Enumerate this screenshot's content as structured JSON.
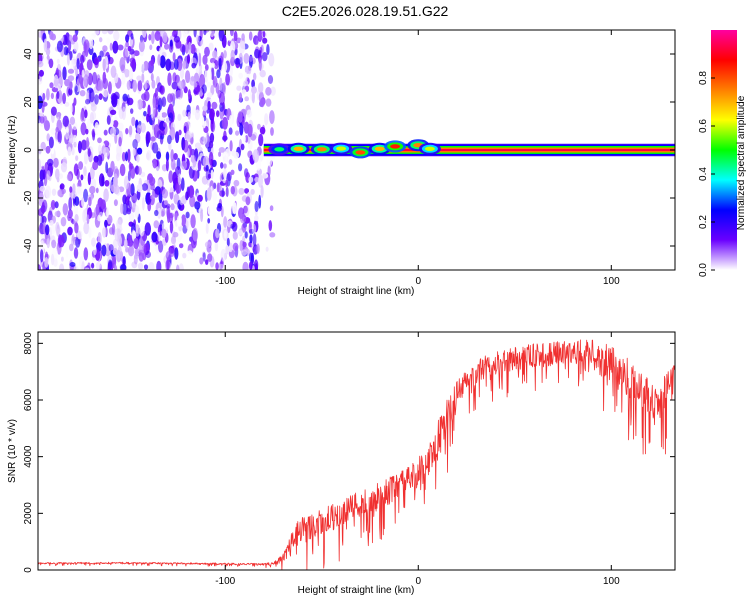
{
  "chart_data": [
    {
      "type": "heatmap",
      "title": "C2E5.2026.028.19.51.G22",
      "xlabel": "Height of straight line (km)",
      "ylabel": "Frequency (Hz)",
      "xlim": [
        -197,
        133
      ],
      "ylim": [
        -50,
        50
      ],
      "x_ticks": [
        -100,
        0,
        100
      ],
      "x_tick_labels": [
        "-100",
        "0",
        "100"
      ],
      "y_ticks": [
        -40,
        -20,
        0,
        20,
        40
      ],
      "y_tick_labels": [
        "-40",
        "-20",
        "0",
        "20",
        "40"
      ],
      "noise_region": {
        "x_from": -197,
        "x_to": -75,
        "freq_from": -50,
        "freq_to": 50
      },
      "signal_band": {
        "x_from": -80,
        "x_to": 133,
        "freq_center": 0,
        "half_width_hz": 1.5
      },
      "signal_blobs": [
        {
          "x": -72,
          "freq": 0.3,
          "amp": 0.45
        },
        {
          "x": -62,
          "freq": 0.5,
          "amp": 0.7
        },
        {
          "x": -50,
          "freq": 0.3,
          "amp": 0.75
        },
        {
          "x": -40,
          "freq": 0.6,
          "amp": 0.6
        },
        {
          "x": -30,
          "freq": -1.0,
          "amp": 0.8
        },
        {
          "x": -20,
          "freq": 0.5,
          "amp": 0.7
        },
        {
          "x": -12,
          "freq": 1.5,
          "amp": 0.85
        },
        {
          "x": 0,
          "freq": 2.0,
          "amp": 0.75
        },
        {
          "x": 6,
          "freq": 0.5,
          "amp": 0.6
        }
      ],
      "colorbar": {
        "label": "Normalized spectral amplitude",
        "range": [
          0,
          1
        ],
        "ticks": [
          0.0,
          0.2,
          0.4,
          0.6,
          0.8
        ],
        "tick_labels": [
          "0.0",
          "0.2",
          "0.4",
          "0.6",
          "0.8"
        ],
        "stops": [
          "#ffffff",
          "#6a00ff",
          "#0000ff",
          "#00ffff",
          "#00ff00",
          "#ffff00",
          "#ff7f00",
          "#ff0000",
          "#ff00a0"
        ]
      }
    },
    {
      "type": "line",
      "xlabel": "Height of straight line (km)",
      "ylabel": "SNR (10 * v/v)",
      "xlim": [
        -197,
        133
      ],
      "ylim": [
        0,
        8400
      ],
      "x_ticks": [
        -100,
        0,
        100
      ],
      "x_tick_labels": [
        "-100",
        "0",
        "100"
      ],
      "y_ticks": [
        0,
        2000,
        4000,
        6000,
        8000
      ],
      "y_tick_labels": [
        "0",
        "2000",
        "4000",
        "6000",
        "8000"
      ],
      "color": "#f03030",
      "series": [
        {
          "name": "SNR",
          "x": [
            -197,
            -180,
            -160,
            -140,
            -120,
            -100,
            -90,
            -80,
            -75,
            -70,
            -65,
            -62,
            -58,
            -55,
            -50,
            -45,
            -40,
            -35,
            -30,
            -25,
            -20,
            -15,
            -10,
            -5,
            0,
            3,
            6,
            10,
            15,
            20,
            25,
            30,
            35,
            40,
            45,
            50,
            55,
            60,
            65,
            70,
            75,
            80,
            85,
            90,
            95,
            100,
            105,
            110,
            115,
            120,
            125,
            130,
            133
          ],
          "y": [
            250,
            250,
            260,
            250,
            240,
            230,
            220,
            210,
            260,
            450,
            1200,
            1500,
            1600,
            1700,
            1800,
            2000,
            2150,
            2300,
            2450,
            2600,
            2750,
            2950,
            3100,
            3300,
            3600,
            3800,
            4100,
            4800,
            5600,
            6300,
            6800,
            7100,
            7300,
            7400,
            7500,
            7600,
            7650,
            7700,
            7700,
            7750,
            7800,
            7800,
            7850,
            7850,
            7600,
            7400,
            7200,
            6900,
            6600,
            6300,
            6200,
            6600,
            7000
          ],
          "spread": [
            40,
            40,
            40,
            40,
            40,
            40,
            40,
            50,
            80,
            250,
            600,
            700,
            700,
            700,
            700,
            700,
            700,
            700,
            700,
            700,
            700,
            700,
            700,
            700,
            800,
            800,
            800,
            900,
            900,
            800,
            700,
            600,
            600,
            600,
            600,
            600,
            600,
            600,
            600,
            600,
            600,
            600,
            600,
            600,
            900,
            1000,
            1000,
            1000,
            1000,
            1000,
            1000,
            900,
            800
          ]
        }
      ]
    }
  ]
}
